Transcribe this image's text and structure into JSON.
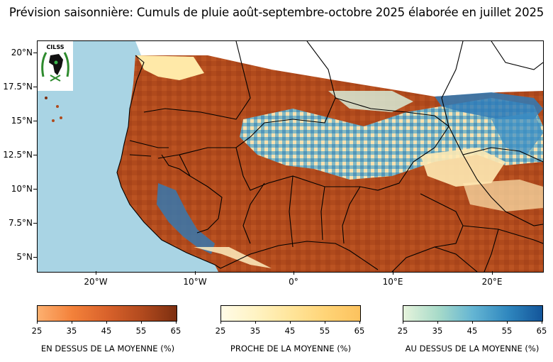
{
  "title": "Prévision saisonnière:  Cumuls de pluie août-septembre-octobre 2025 élaborée en juillet 2025",
  "logo_text": "CILSS",
  "map": {
    "lat_labels": [
      "20°N",
      "17.5°N",
      "15°N",
      "12.5°N",
      "10°N",
      "7.5°N",
      "5°N"
    ],
    "lon_labels": [
      "20°W",
      "10°W",
      "0°",
      "10°E",
      "20°E"
    ],
    "colors": {
      "ocean": "#a9d4e4",
      "border": "#000000",
      "no_data": "#ffffff"
    }
  },
  "legends": [
    {
      "label": "EN DESSUS DE LA MOYENNE (%)",
      "ticks": [
        "25",
        "35",
        "45",
        "55",
        "65"
      ],
      "gradient": [
        "#fdb070",
        "#f3813a",
        "#d9622b",
        "#b24a1e",
        "#7d2f10"
      ]
    },
    {
      "label": "PROCHE DE LA MOYENNE (%)",
      "ticks": [
        "25",
        "35",
        "45",
        "55",
        "65"
      ],
      "gradient": [
        "#fffbe7",
        "#fff3c3",
        "#ffe59b",
        "#ffd477",
        "#fcc25e"
      ]
    },
    {
      "label": "AU DESSUS DE LA MOYENNE (%)",
      "ticks": [
        "25",
        "35",
        "45",
        "55",
        "65"
      ],
      "gradient": [
        "#e6f3dc",
        "#a8dbc9",
        "#64b5d3",
        "#3088bf",
        "#13559a"
      ]
    }
  ]
}
